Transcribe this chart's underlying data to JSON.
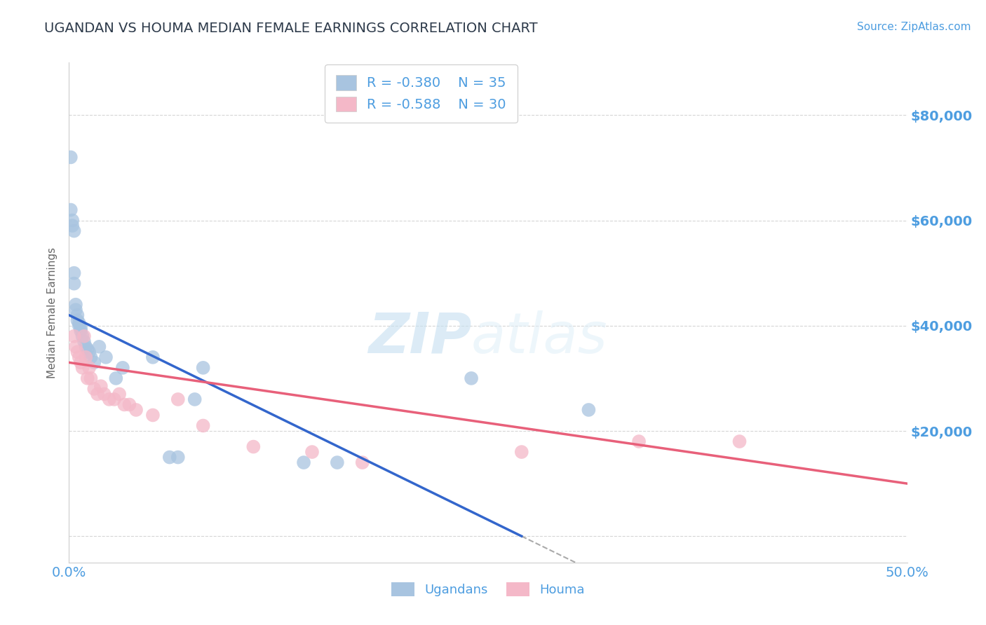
{
  "title": "UGANDAN VS HOUMA MEDIAN FEMALE EARNINGS CORRELATION CHART",
  "source_text": "Source: ZipAtlas.com",
  "ylabel": "Median Female Earnings",
  "xlim": [
    0.0,
    0.5
  ],
  "ylim": [
    -5000,
    90000
  ],
  "yticks": [
    0,
    20000,
    40000,
    60000,
    80000
  ],
  "ytick_labels": [
    "",
    "$20,000",
    "$40,000",
    "$60,000",
    "$80,000"
  ],
  "xticks": [
    0.0,
    0.1,
    0.2,
    0.3,
    0.4,
    0.5
  ],
  "xtick_labels": [
    "0.0%",
    "",
    "",
    "",
    "",
    "50.0%"
  ],
  "ugandan_color": "#a8c4e0",
  "houma_color": "#f4b8c8",
  "ugandan_line_color": "#3366cc",
  "houma_line_color": "#e8607a",
  "legend_r_ugandan": "R = -0.380",
  "legend_n_ugandan": "N = 35",
  "legend_r_houma": "R = -0.588",
  "legend_n_houma": "N = 30",
  "ugandan_label": "Ugandans",
  "houma_label": "Houma",
  "watermark_zip": "ZIP",
  "watermark_atlas": "atlas",
  "background_color": "#ffffff",
  "grid_color": "#cccccc",
  "title_color": "#2d3a4a",
  "axis_label_color": "#666666",
  "tick_label_color": "#4d9de0",
  "ugandan_x": [
    0.001,
    0.001,
    0.002,
    0.002,
    0.003,
    0.003,
    0.003,
    0.004,
    0.004,
    0.005,
    0.005,
    0.006,
    0.006,
    0.007,
    0.007,
    0.008,
    0.009,
    0.01,
    0.011,
    0.012,
    0.013,
    0.015,
    0.018,
    0.022,
    0.028,
    0.032,
    0.05,
    0.06,
    0.065,
    0.075,
    0.08,
    0.14,
    0.16,
    0.24,
    0.31
  ],
  "ugandan_y": [
    72000,
    62000,
    60000,
    59000,
    58000,
    50000,
    48000,
    44000,
    43000,
    42000,
    41000,
    40500,
    40000,
    39500,
    39000,
    38000,
    37000,
    36000,
    35500,
    35000,
    34000,
    33000,
    36000,
    34000,
    30000,
    32000,
    34000,
    15000,
    15000,
    26000,
    32000,
    14000,
    14000,
    30000,
    24000
  ],
  "houma_x": [
    0.003,
    0.004,
    0.005,
    0.006,
    0.007,
    0.008,
    0.009,
    0.01,
    0.011,
    0.012,
    0.013,
    0.015,
    0.017,
    0.019,
    0.021,
    0.024,
    0.027,
    0.03,
    0.033,
    0.036,
    0.04,
    0.05,
    0.065,
    0.08,
    0.11,
    0.145,
    0.175,
    0.27,
    0.34,
    0.4
  ],
  "houma_y": [
    38000,
    36000,
    35000,
    34000,
    33000,
    32000,
    38000,
    34000,
    30000,
    32000,
    30000,
    28000,
    27000,
    28500,
    27000,
    26000,
    26000,
    27000,
    25000,
    25000,
    24000,
    23000,
    26000,
    21000,
    17000,
    16000,
    14000,
    16000,
    18000,
    18000
  ],
  "ugandan_line_x0": 0.0,
  "ugandan_line_y0": 42000,
  "ugandan_line_x1": 0.27,
  "ugandan_line_y1": 0,
  "houma_line_x0": 0.0,
  "houma_line_y0": 33000,
  "houma_line_x1": 0.5,
  "houma_line_y1": 10000
}
